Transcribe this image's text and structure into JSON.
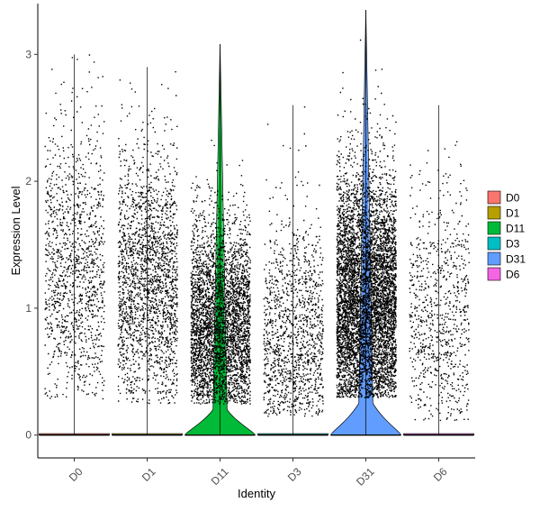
{
  "chart_data": {
    "type": "violin",
    "title": "",
    "xlabel": "Identity",
    "ylabel": "Expression Level",
    "ylim": [
      -0.18,
      3.4
    ],
    "yticks": [
      0,
      1,
      2,
      3
    ],
    "categories": [
      "D0",
      "D1",
      "D11",
      "D3",
      "D31",
      "D6"
    ],
    "colors": [
      "#F8766D",
      "#B79F00",
      "#00BA38",
      "#00BFC4",
      "#619CFF",
      "#F564E3"
    ],
    "legend": {
      "entries": [
        "D0",
        "D1",
        "D11",
        "D3",
        "D31",
        "D6"
      ],
      "placement": "right"
    },
    "grid": false,
    "series": [
      {
        "name": "D0",
        "max": 3.0,
        "jitter_points": 1300,
        "zero_peak": 0.0
      },
      {
        "name": "D1",
        "max": 2.9,
        "jitter_points": 2200,
        "zero_peak": 0.0
      },
      {
        "name": "D11",
        "max": 3.08,
        "jitter_points": 4200,
        "zero_peak": 0.2
      },
      {
        "name": "D3",
        "max": 2.6,
        "jitter_points": 1500,
        "zero_peak": 0.05
      },
      {
        "name": "D31",
        "max": 3.35,
        "jitter_points": 7000,
        "zero_peak": 0.25
      },
      {
        "name": "D6",
        "max": 2.6,
        "jitter_points": 900,
        "zero_peak": 0.0
      }
    ]
  }
}
